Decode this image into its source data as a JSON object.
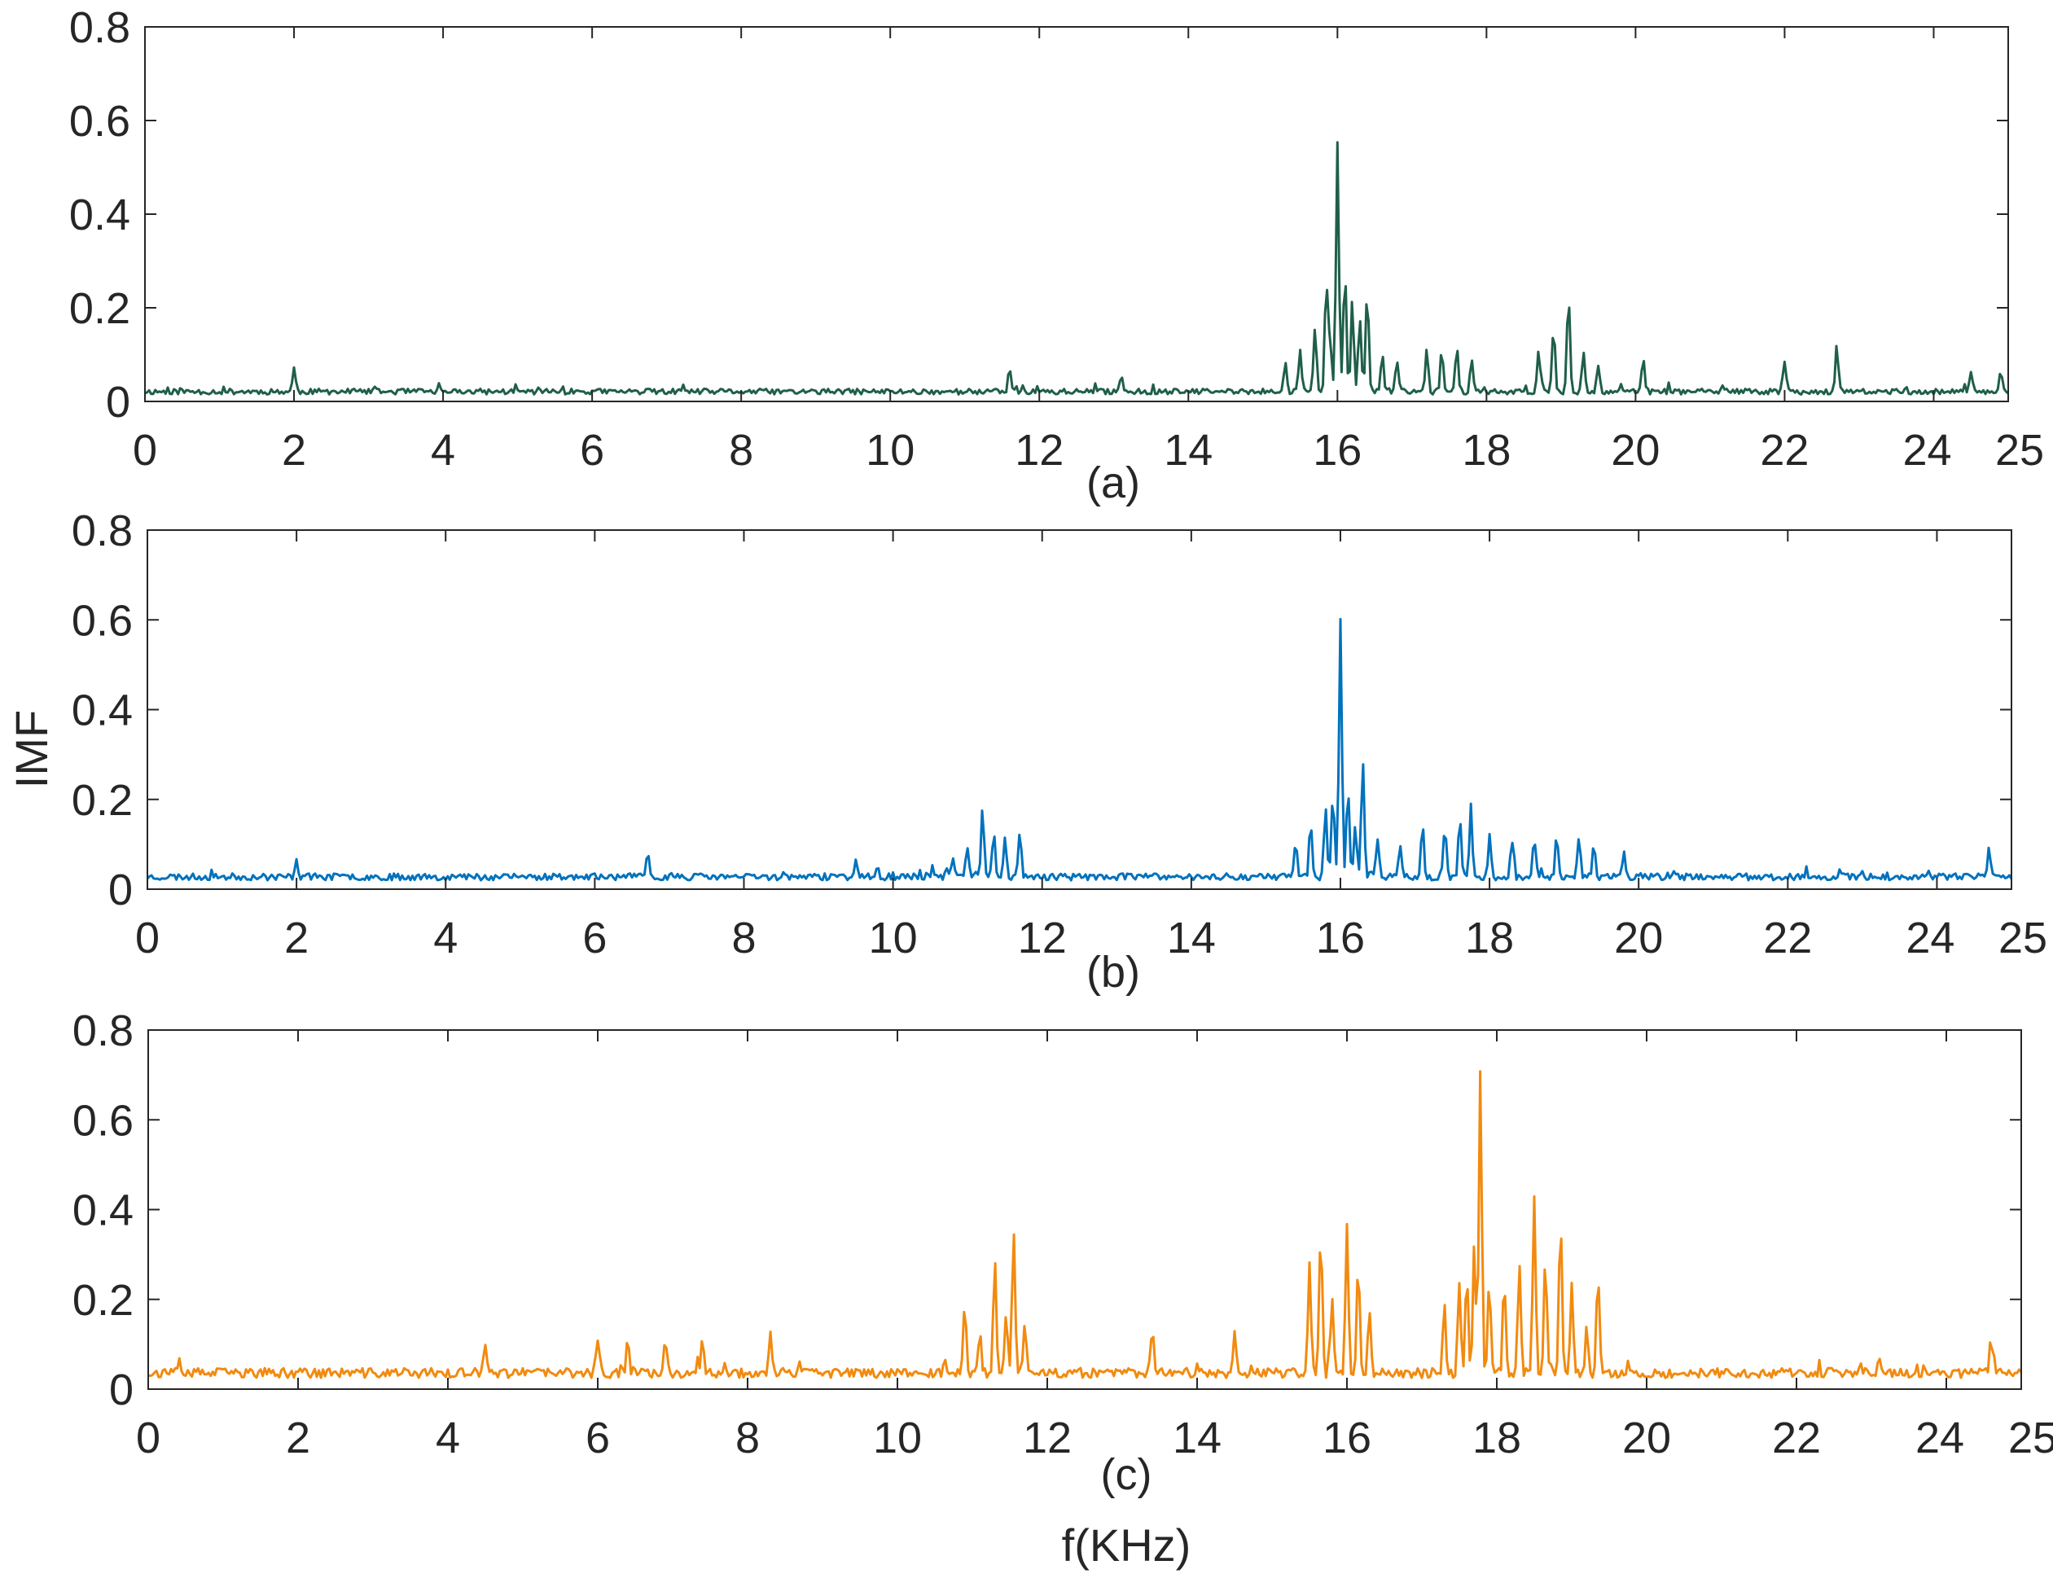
{
  "chart_data": [
    {
      "type": "line",
      "panel_label": "(a)",
      "color": "#1f5f4a",
      "xlim": [
        0,
        25
      ],
      "ylim": [
        0,
        0.8
      ],
      "x_ticks": [
        "0",
        "2",
        "4",
        "6",
        "8",
        "10",
        "12",
        "14",
        "16",
        "18",
        "20",
        "22",
        "24",
        "25"
      ],
      "y_ticks": [
        "0",
        "0.2",
        "0.4",
        "0.6",
        "0.8"
      ],
      "baseline": 0.015,
      "noise": 0.012,
      "seed": 11,
      "peaks": [
        [
          2.0,
          0.05
        ],
        [
          11.6,
          0.05
        ],
        [
          13.1,
          0.04
        ],
        [
          15.3,
          0.06
        ],
        [
          15.5,
          0.09
        ],
        [
          15.7,
          0.14
        ],
        [
          15.85,
          0.24
        ],
        [
          15.9,
          0.12
        ],
        [
          16.0,
          0.53
        ],
        [
          16.1,
          0.26
        ],
        [
          16.2,
          0.18
        ],
        [
          16.3,
          0.16
        ],
        [
          16.4,
          0.22
        ],
        [
          16.6,
          0.08
        ],
        [
          16.8,
          0.07
        ],
        [
          17.2,
          0.09
        ],
        [
          17.4,
          0.09
        ],
        [
          17.6,
          0.08
        ],
        [
          17.8,
          0.07
        ],
        [
          18.7,
          0.09
        ],
        [
          18.9,
          0.14
        ],
        [
          19.1,
          0.21
        ],
        [
          19.3,
          0.08
        ],
        [
          19.5,
          0.06
        ],
        [
          20.1,
          0.07
        ],
        [
          22.0,
          0.065
        ],
        [
          22.7,
          0.095
        ],
        [
          24.5,
          0.04
        ],
        [
          24.9,
          0.04
        ]
      ]
    },
    {
      "type": "line",
      "panel_label": "(b)",
      "color": "#0072bd",
      "xlim": [
        0,
        25
      ],
      "ylim": [
        0,
        0.8
      ],
      "x_ticks": [
        "0",
        "2",
        "4",
        "6",
        "8",
        "10",
        "12",
        "14",
        "16",
        "18",
        "20",
        "22",
        "24",
        "25"
      ],
      "y_ticks": [
        "0",
        "0.2",
        "0.4",
        "0.6",
        "0.8"
      ],
      "ylabel": "IMF",
      "baseline": 0.02,
      "noise": 0.015,
      "seed": 23,
      "peaks": [
        [
          2.0,
          0.04
        ],
        [
          6.7,
          0.04
        ],
        [
          9.5,
          0.04
        ],
        [
          10.8,
          0.05
        ],
        [
          11.0,
          0.07
        ],
        [
          11.2,
          0.15
        ],
        [
          11.35,
          0.1
        ],
        [
          11.5,
          0.09
        ],
        [
          11.7,
          0.1
        ],
        [
          15.4,
          0.08
        ],
        [
          15.6,
          0.12
        ],
        [
          15.8,
          0.16
        ],
        [
          15.9,
          0.18
        ],
        [
          16.0,
          0.58
        ],
        [
          16.1,
          0.2
        ],
        [
          16.2,
          0.12
        ],
        [
          16.3,
          0.26
        ],
        [
          16.5,
          0.09
        ],
        [
          16.8,
          0.07
        ],
        [
          17.1,
          0.12
        ],
        [
          17.4,
          0.11
        ],
        [
          17.6,
          0.13
        ],
        [
          17.75,
          0.14
        ],
        [
          18.0,
          0.09
        ],
        [
          18.3,
          0.08
        ],
        [
          18.6,
          0.09
        ],
        [
          18.9,
          0.09
        ],
        [
          19.2,
          0.09
        ],
        [
          19.4,
          0.07
        ],
        [
          19.8,
          0.06
        ],
        [
          24.7,
          0.065
        ]
      ]
    },
    {
      "type": "line",
      "panel_label": "(c)",
      "color": "#f28a0f",
      "xlim": [
        0,
        25
      ],
      "ylim": [
        0,
        0.8
      ],
      "x_ticks": [
        "0",
        "2",
        "4",
        "6",
        "8",
        "10",
        "12",
        "14",
        "16",
        "18",
        "20",
        "22",
        "24",
        "25"
      ],
      "y_ticks": [
        "0",
        "0.2",
        "0.4",
        "0.6",
        "0.8"
      ],
      "xlabel": "f(KHz)",
      "baseline": 0.025,
      "noise": 0.022,
      "seed": 37,
      "peaks": [
        [
          4.5,
          0.06
        ],
        [
          6.0,
          0.08
        ],
        [
          6.4,
          0.08
        ],
        [
          6.9,
          0.08
        ],
        [
          7.4,
          0.07
        ],
        [
          8.3,
          0.09
        ],
        [
          10.9,
          0.15
        ],
        [
          11.1,
          0.09
        ],
        [
          11.3,
          0.25
        ],
        [
          11.45,
          0.14
        ],
        [
          11.55,
          0.33
        ],
        [
          11.7,
          0.1
        ],
        [
          13.4,
          0.1
        ],
        [
          14.5,
          0.1
        ],
        [
          15.5,
          0.25
        ],
        [
          15.65,
          0.32
        ],
        [
          15.8,
          0.18
        ],
        [
          16.0,
          0.33
        ],
        [
          16.15,
          0.25
        ],
        [
          16.3,
          0.15
        ],
        [
          17.3,
          0.15
        ],
        [
          17.5,
          0.21
        ],
        [
          17.6,
          0.22
        ],
        [
          17.7,
          0.29
        ],
        [
          17.78,
          0.67
        ],
        [
          17.9,
          0.2
        ],
        [
          18.1,
          0.2
        ],
        [
          18.3,
          0.24
        ],
        [
          18.5,
          0.39
        ],
        [
          18.65,
          0.25
        ],
        [
          18.85,
          0.34
        ],
        [
          19.0,
          0.2
        ],
        [
          19.2,
          0.1
        ],
        [
          19.35,
          0.23
        ],
        [
          24.6,
          0.07
        ]
      ]
    }
  ]
}
